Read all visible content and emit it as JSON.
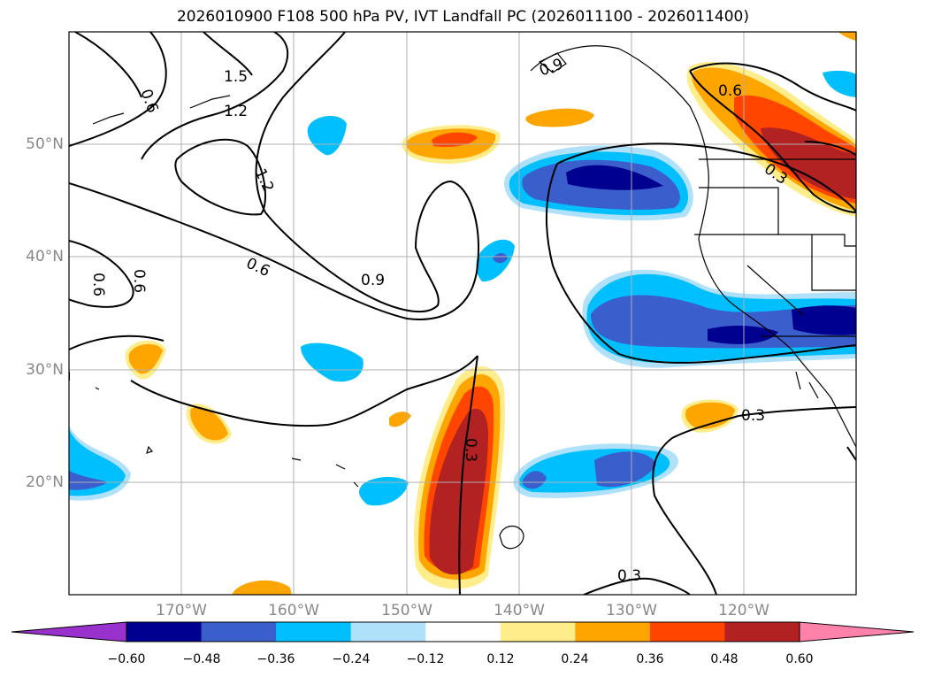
{
  "title": "2026010900 F108 500 hPa PV, IVT Landfall PC (2026011100 - 2026011400)",
  "lat_labels": [
    "50°N",
    "40°N",
    "30°N",
    "20°N"
  ],
  "lon_labels": [
    "170°W",
    "160°W",
    "150°W",
    "140°W",
    "130°W",
    "120°W"
  ],
  "contour_labels": [
    "0.6",
    "1.5",
    "1.2",
    "1.2",
    "0.6",
    "0.9",
    "0.6",
    "0.6",
    "0.9",
    "0.6",
    "0.3",
    "0.3",
    "0.3",
    "0.3"
  ],
  "colorbar": {
    "ticks": [
      "−0.60",
      "−0.48",
      "−0.36",
      "−0.24",
      "−0.12",
      "0.12",
      "0.24",
      "0.36",
      "0.48",
      "0.60"
    ],
    "colors": [
      "#9932cc",
      "#000090",
      "#3a5fcd",
      "#00bfff",
      "#afe1fa",
      "#ffffff",
      "#ffec8b",
      "#ffa500",
      "#ff4500",
      "#b22222",
      "#ff82ab"
    ]
  },
  "chart_data": {
    "type": "map",
    "title": "2026010900 F108 500 hPa PV, IVT Landfall PC (2026011100 - 2026011400)",
    "extent": {
      "lon_min": -180,
      "lon_max": -110,
      "lat_min": 10,
      "lat_max": 60
    },
    "filled_field": "IVT Landfall PC",
    "contour_field": "500 hPa PV",
    "contour_levels": [
      0.3,
      0.6,
      0.9,
      1.2,
      1.5
    ],
    "color_levels": [
      -0.6,
      -0.48,
      -0.36,
      -0.24,
      -0.12,
      0.12,
      0.24,
      0.36,
      0.48,
      0.6
    ],
    "xticks": [
      "170°W",
      "160°W",
      "150°W",
      "140°W",
      "130°W",
      "120°W"
    ],
    "yticks": [
      "50°N",
      "40°N",
      "30°N",
      "20°N"
    ],
    "features": [
      {
        "label": "positive band",
        "lon": [
          -147,
          -142
        ],
        "lat": [
          10,
          30
        ],
        "max": 0.48
      },
      {
        "label": "negative band",
        "lon": [
          -135,
          -112
        ],
        "lat": [
          32,
          37
        ],
        "min": -0.6
      },
      {
        "label": "negative patch",
        "lon": [
          -140,
          -128
        ],
        "lat": [
          44,
          49
        ],
        "min": -0.6
      },
      {
        "label": "positive NW coast",
        "lon": [
          -128,
          -110
        ],
        "lat": [
          45,
          57
        ],
        "max": 0.48
      }
    ]
  }
}
